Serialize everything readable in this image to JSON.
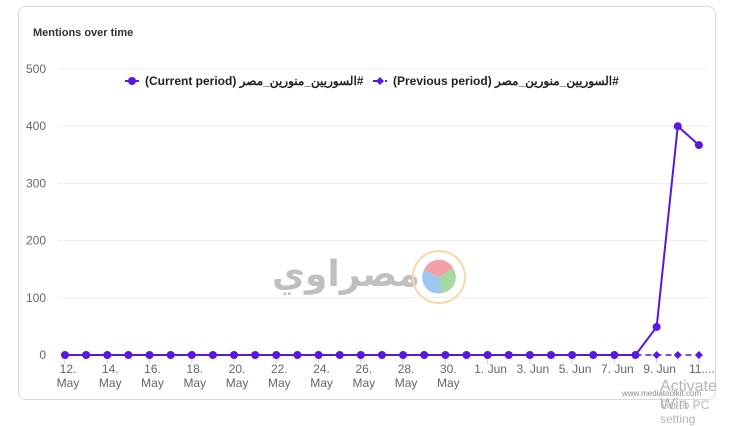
{
  "card": {
    "title": "Mentions over time"
  },
  "chart_data": {
    "type": "line",
    "title": "Mentions over time",
    "xlabel": "",
    "ylabel": "",
    "ylim": [
      0,
      500
    ],
    "yticks": [
      0,
      100,
      200,
      300,
      400,
      500
    ],
    "grid": true,
    "legend_position": "top",
    "categories": [
      "12 May",
      "13 May",
      "14 May",
      "15 May",
      "16 May",
      "17 May",
      "18 May",
      "19 May",
      "20 May",
      "21 May",
      "22 May",
      "23 May",
      "24 May",
      "25 May",
      "26 May",
      "27 May",
      "28 May",
      "29 May",
      "30 May",
      "31 May",
      "1 Jun",
      "2 Jun",
      "3 Jun",
      "4 Jun",
      "5 Jun",
      "6 Jun",
      "7 Jun",
      "8 Jun",
      "9 Jun",
      "10 Jun",
      "11 Jun"
    ],
    "xtick_labels": [
      [
        "12.",
        "May"
      ],
      [
        "14.",
        "May"
      ],
      [
        "16.",
        "May"
      ],
      [
        "18.",
        "May"
      ],
      [
        "20.",
        "May"
      ],
      [
        "22.",
        "May"
      ],
      [
        "24.",
        "May"
      ],
      [
        "26.",
        "May"
      ],
      [
        "28.",
        "May"
      ],
      [
        "30.",
        "May"
      ],
      [
        "1. Jun",
        ""
      ],
      [
        "3. Jun",
        ""
      ],
      [
        "5. Jun",
        ""
      ],
      [
        "7. Jun",
        ""
      ],
      [
        "9. Jun",
        ""
      ],
      [
        "11....",
        ""
      ]
    ],
    "series": [
      {
        "name": "#السوريين_منورين_مصر (Current period)",
        "style": "solid-circle",
        "color": "#5b16e0",
        "values": [
          0,
          0,
          0,
          0,
          0,
          0,
          0,
          0,
          0,
          0,
          0,
          0,
          0,
          0,
          0,
          0,
          0,
          0,
          0,
          0,
          0,
          0,
          0,
          0,
          0,
          0,
          0,
          0,
          49,
          400,
          367
        ]
      },
      {
        "name": "#السوريين_منورين_مصر (Previous period)",
        "style": "dashed-diamond",
        "color": "#5b16e0",
        "values": [
          0,
          0,
          0,
          0,
          0,
          0,
          0,
          0,
          0,
          0,
          0,
          0,
          0,
          0,
          0,
          0,
          0,
          0,
          0,
          0,
          0,
          0,
          0,
          0,
          0,
          0,
          0,
          0,
          0,
          0,
          0
        ]
      }
    ]
  },
  "legend": {
    "current": "#السوريين_منورين_مصر (Current period)",
    "previous": "#السوريين_منورين_مصر (Previous period)"
  },
  "overlay": {
    "logo_text": "مصراوي",
    "watermark": "www.mediatoolkit.com",
    "activate_line1": "Activate Win",
    "activate_line2": "Go to PC setting"
  }
}
